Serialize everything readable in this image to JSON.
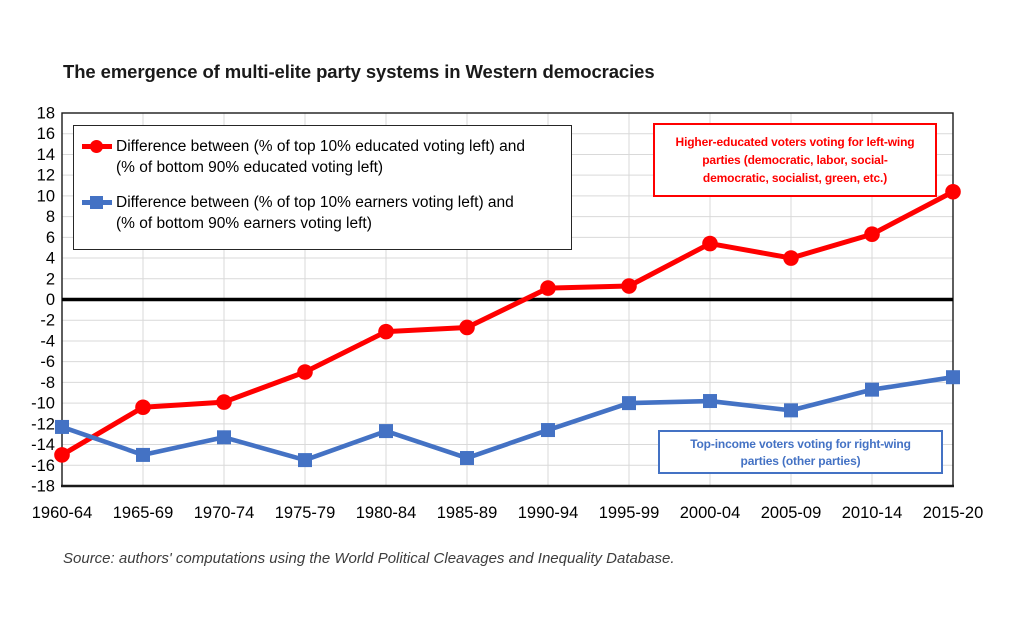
{
  "page": {
    "title": "The emergence of multi-elite party systems in Western democracies",
    "source_note": "Source: authors' computations using the World Political Cleavages and Inequality Database."
  },
  "legend": {
    "entries": [
      {
        "marker": "red-circle",
        "line1": "Difference between (% of top 10% educated voting left) and",
        "line2": "(% of bottom 90% educated voting left)"
      },
      {
        "marker": "blue-square",
        "line1": "Difference between (% of top 10% earners voting left) and",
        "line2": "(% of bottom 90% earners voting left)"
      }
    ]
  },
  "annotations": {
    "higher_educated": {
      "color": "#FF0000",
      "lines": [
        "Higher-educated voters voting for left-wing",
        "parties (democratic, labor, social-",
        "democratic, socialist, green, etc.)"
      ]
    },
    "top_income": {
      "color": "#4472C4",
      "lines": [
        "Top-income voters voting for right-wing",
        "parties (other parties)"
      ]
    }
  },
  "chart_data": {
    "type": "line",
    "title": "The emergence of multi-elite party systems in Western democracies",
    "categories": [
      "1960-64",
      "1965-69",
      "1970-74",
      "1975-79",
      "1980-84",
      "1985-89",
      "1990-94",
      "1995-99",
      "2000-04",
      "2005-09",
      "2010-14",
      "2015-20"
    ],
    "series": [
      {
        "name": "Difference between (% of top 10% educated voting left) and (% of bottom 90% educated voting left)",
        "color": "#FF0000",
        "marker": "circle",
        "values": [
          -15.0,
          -10.4,
          -9.9,
          -7.0,
          -3.1,
          -2.7,
          1.1,
          1.3,
          5.4,
          4.0,
          6.3,
          10.4
        ]
      },
      {
        "name": "Difference between (% of top 10% earners voting left) and (% of bottom 90% earners voting left)",
        "color": "#4472C4",
        "marker": "square",
        "values": [
          -12.3,
          -15.0,
          -13.3,
          -15.5,
          -12.7,
          -15.3,
          -12.6,
          -10.0,
          -9.8,
          -10.7,
          -8.7,
          -7.5
        ]
      }
    ],
    "xlabel": "",
    "ylabel": "",
    "ylim": [
      -18,
      18
    ],
    "ytick_step": 2,
    "yticks": [
      18,
      16,
      14,
      12,
      10,
      8,
      6,
      4,
      2,
      0,
      -2,
      -4,
      -6,
      -8,
      -10,
      -12,
      -14,
      -16,
      -18
    ],
    "grid": true,
    "zero_line": true,
    "legend_position": "top-left"
  },
  "colors": {
    "red": "#FF0000",
    "blue": "#4472C4",
    "gridline": "#D9D9D9",
    "axis": "#1a1a1a",
    "zero_line": "#000000",
    "tick_label": "#000000"
  }
}
